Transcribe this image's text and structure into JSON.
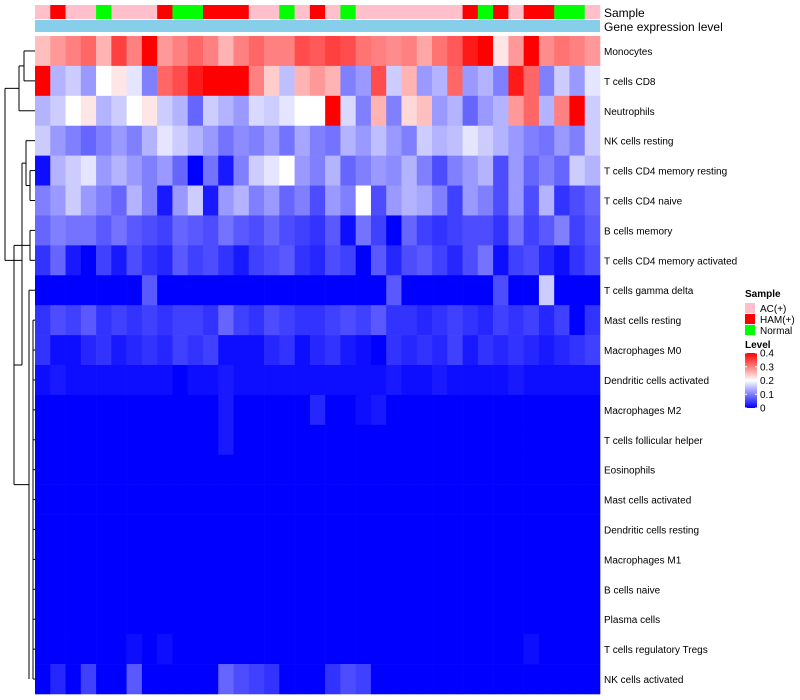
{
  "chart_data": {
    "type": "heatmap",
    "title": "",
    "annotation_labels": {
      "sample": "Sample",
      "gene": "Gene expression level"
    },
    "rows": [
      "Monocytes",
      "T cells CD8",
      "Neutrophils",
      "NK cells resting",
      "T cells CD4 memory resting",
      "T cells CD4 naive",
      "B cells memory",
      "T cells CD4 memory activated",
      "T cells gamma delta",
      "Mast cells resting",
      "Macrophages M0",
      "Dendritic cells activated",
      "Macrophages M2",
      "T cells follicular helper",
      "Eosinophils",
      "Mast cells activated",
      "Dendritic cells resting",
      "Macrophages M1",
      "B cells naive",
      "Plasma cells",
      "T cells regulatory  Tregs",
      "NK cells activated"
    ],
    "sample_groups": [
      "AC",
      "HAM",
      "AC",
      "AC",
      "Normal",
      "AC",
      "AC",
      "AC",
      "HAM",
      "Normal",
      "Normal",
      "HAM",
      "HAM",
      "HAM",
      "AC",
      "AC",
      "Normal",
      "AC",
      "HAM",
      "AC",
      "Normal",
      "AC",
      "AC",
      "AC",
      "AC",
      "AC",
      "AC",
      "AC",
      "HAM",
      "Normal",
      "HAM",
      "AC",
      "HAM",
      "HAM",
      "Normal",
      "Normal",
      "AC"
    ],
    "values": [
      [
        0.25,
        0.28,
        0.3,
        0.32,
        0.26,
        0.35,
        0.3,
        0.4,
        0.28,
        0.3,
        0.32,
        0.3,
        0.26,
        0.3,
        0.32,
        0.3,
        0.3,
        0.34,
        0.33,
        0.35,
        0.34,
        0.31,
        0.3,
        0.29,
        0.3,
        0.27,
        0.31,
        0.33,
        0.38,
        0.4,
        0.22,
        0.28,
        0.4,
        0.29,
        0.31,
        0.3,
        0.28
      ],
      [
        0.4,
        0.14,
        0.16,
        0.12,
        0.2,
        0.22,
        0.18,
        0.1,
        0.32,
        0.34,
        0.38,
        0.4,
        0.4,
        0.4,
        0.3,
        0.24,
        0.15,
        0.26,
        0.28,
        0.26,
        0.1,
        0.12,
        0.34,
        0.16,
        0.26,
        0.12,
        0.14,
        0.32,
        0.12,
        0.14,
        0.1,
        0.38,
        0.32,
        0.1,
        0.16,
        0.12,
        0.18
      ],
      [
        0.14,
        0.16,
        0.2,
        0.22,
        0.14,
        0.16,
        0.2,
        0.22,
        0.16,
        0.14,
        0.08,
        0.16,
        0.14,
        0.12,
        0.17,
        0.16,
        0.18,
        0.2,
        0.2,
        0.4,
        0.17,
        0.1,
        0.26,
        0.1,
        0.23,
        0.25,
        0.12,
        0.14,
        0.08,
        0.12,
        0.14,
        0.28,
        0.32,
        0.14,
        0.3,
        0.4,
        0.16
      ],
      [
        0.16,
        0.12,
        0.1,
        0.08,
        0.1,
        0.12,
        0.1,
        0.14,
        0.18,
        0.16,
        0.14,
        0.12,
        0.09,
        0.11,
        0.1,
        0.12,
        0.09,
        0.13,
        0.1,
        0.09,
        0.14,
        0.12,
        0.15,
        0.12,
        0.1,
        0.16,
        0.14,
        0.15,
        0.18,
        0.16,
        0.14,
        0.12,
        0.1,
        0.09,
        0.12,
        0.1,
        0.16
      ],
      [
        0.01,
        0.14,
        0.16,
        0.18,
        0.12,
        0.14,
        0.12,
        0.1,
        0.12,
        0.08,
        0.0,
        0.09,
        0.02,
        0.1,
        0.16,
        0.18,
        0.2,
        0.12,
        0.1,
        0.14,
        0.08,
        0.1,
        0.12,
        0.11,
        0.14,
        0.1,
        0.06,
        0.1,
        0.12,
        0.14,
        0.06,
        0.12,
        0.08,
        0.1,
        0.08,
        0.16,
        0.14
      ],
      [
        0.1,
        0.12,
        0.16,
        0.12,
        0.1,
        0.08,
        0.14,
        0.1,
        0.02,
        0.12,
        0.16,
        0.02,
        0.12,
        0.14,
        0.1,
        0.12,
        0.08,
        0.1,
        0.06,
        0.12,
        0.1,
        0.2,
        0.06,
        0.12,
        0.14,
        0.13,
        0.1,
        0.05,
        0.12,
        0.1,
        0.06,
        0.12,
        0.06,
        0.14,
        0.04,
        0.06,
        0.08
      ],
      [
        0.08,
        0.1,
        0.09,
        0.09,
        0.07,
        0.09,
        0.07,
        0.06,
        0.05,
        0.08,
        0.07,
        0.06,
        0.09,
        0.07,
        0.06,
        0.08,
        0.06,
        0.05,
        0.04,
        0.07,
        0.01,
        0.09,
        0.05,
        0.0,
        0.08,
        0.05,
        0.04,
        0.05,
        0.06,
        0.06,
        0.04,
        0.09,
        0.05,
        0.07,
        0.1,
        0.05,
        0.07
      ],
      [
        0.04,
        0.08,
        0.02,
        0.0,
        0.05,
        0.02,
        0.06,
        0.04,
        0.03,
        0.07,
        0.05,
        0.06,
        0.04,
        0.02,
        0.05,
        0.06,
        0.07,
        0.04,
        0.03,
        0.06,
        0.05,
        0.0,
        0.07,
        0.03,
        0.06,
        0.07,
        0.05,
        0.03,
        0.06,
        0.09,
        0.01,
        0.05,
        0.06,
        0.03,
        0.01,
        0.04,
        0.06
      ],
      [
        0.0,
        0.0,
        0.0,
        0.0,
        0.0,
        0.0,
        0.0,
        0.07,
        0.0,
        0.0,
        0.0,
        0.0,
        0.0,
        0.0,
        0.0,
        0.0,
        0.0,
        0.0,
        0.0,
        0.0,
        0.0,
        0.0,
        0.0,
        0.07,
        0.0,
        0.0,
        0.0,
        0.0,
        0.0,
        0.0,
        0.06,
        0.0,
        0.0,
        0.16,
        0.0,
        0.0,
        0.0
      ],
      [
        0.04,
        0.06,
        0.05,
        0.07,
        0.04,
        0.05,
        0.04,
        0.05,
        0.04,
        0.05,
        0.05,
        0.04,
        0.08,
        0.05,
        0.04,
        0.06,
        0.05,
        0.04,
        0.04,
        0.05,
        0.06,
        0.05,
        0.07,
        0.04,
        0.04,
        0.03,
        0.04,
        0.05,
        0.04,
        0.03,
        0.05,
        0.04,
        0.05,
        0.03,
        0.05,
        0.0,
        0.04
      ],
      [
        0.04,
        0.01,
        0.01,
        0.03,
        0.04,
        0.02,
        0.03,
        0.04,
        0.03,
        0.05,
        0.04,
        0.05,
        0.01,
        0.01,
        0.01,
        0.03,
        0.04,
        0.01,
        0.03,
        0.04,
        0.02,
        0.01,
        0.0,
        0.04,
        0.03,
        0.04,
        0.03,
        0.05,
        0.02,
        0.04,
        0.03,
        0.04,
        0.03,
        0.02,
        0.03,
        0.04,
        0.05
      ],
      [
        0.01,
        0.02,
        0.01,
        0.01,
        0.01,
        0.01,
        0.01,
        0.01,
        0.01,
        0.0,
        0.01,
        0.01,
        0.02,
        0.01,
        0.01,
        0.01,
        0.01,
        0.01,
        0.01,
        0.01,
        0.01,
        0.01,
        0.01,
        0.02,
        0.01,
        0.01,
        0.02,
        0.01,
        0.01,
        0.01,
        0.01,
        0.02,
        0.01,
        0.01,
        0.01,
        0.01,
        0.01
      ],
      [
        0.0,
        0.0,
        0.0,
        0.0,
        0.0,
        0.0,
        0.0,
        0.0,
        0.0,
        0.0,
        0.0,
        0.0,
        0.02,
        0.0,
        0.0,
        0.0,
        0.0,
        0.0,
        0.03,
        0.0,
        0.0,
        0.01,
        0.02,
        0.0,
        0.0,
        0.0,
        0.0,
        0.0,
        0.0,
        0.0,
        0.0,
        0.0,
        0.0,
        0.0,
        0.0,
        0.0,
        0.0
      ],
      [
        0.0,
        0.0,
        0.0,
        0.0,
        0.0,
        0.0,
        0.0,
        0.0,
        0.0,
        0.0,
        0.0,
        0.0,
        0.02,
        0.0,
        0.0,
        0.0,
        0.0,
        0.0,
        0.0,
        0.0,
        0.0,
        0.0,
        0.0,
        0.0,
        0.0,
        0.0,
        0.0,
        0.0,
        0.0,
        0.0,
        0.0,
        0.0,
        0.0,
        0.0,
        0.0,
        0.0,
        0.0
      ],
      [
        0.0,
        0.0,
        0.0,
        0.0,
        0.0,
        0.0,
        0.0,
        0.0,
        0.0,
        0.0,
        0.0,
        0.0,
        0.0,
        0.0,
        0.0,
        0.0,
        0.0,
        0.0,
        0.0,
        0.0,
        0.0,
        0.0,
        0.0,
        0.0,
        0.0,
        0.0,
        0.0,
        0.0,
        0.0,
        0.0,
        0.0,
        0.0,
        0.0,
        0.0,
        0.0,
        0.0,
        0.0
      ],
      [
        0.0,
        0.0,
        0.0,
        0.0,
        0.0,
        0.0,
        0.0,
        0.0,
        0.0,
        0.0,
        0.0,
        0.0,
        0.0,
        0.0,
        0.0,
        0.0,
        0.0,
        0.0,
        0.0,
        0.0,
        0.0,
        0.0,
        0.0,
        0.0,
        0.0,
        0.0,
        0.0,
        0.0,
        0.0,
        0.0,
        0.0,
        0.0,
        0.0,
        0.0,
        0.0,
        0.0,
        0.0
      ],
      [
        0.0,
        0.0,
        0.0,
        0.0,
        0.0,
        0.0,
        0.0,
        0.0,
        0.0,
        0.0,
        0.0,
        0.0,
        0.0,
        0.0,
        0.0,
        0.0,
        0.0,
        0.0,
        0.0,
        0.0,
        0.0,
        0.0,
        0.0,
        0.0,
        0.0,
        0.0,
        0.0,
        0.0,
        0.0,
        0.0,
        0.0,
        0.0,
        0.0,
        0.0,
        0.0,
        0.0,
        0.0
      ],
      [
        0.0,
        0.0,
        0.0,
        0.0,
        0.0,
        0.0,
        0.0,
        0.0,
        0.0,
        0.0,
        0.0,
        0.0,
        0.0,
        0.0,
        0.0,
        0.0,
        0.0,
        0.0,
        0.0,
        0.0,
        0.0,
        0.0,
        0.0,
        0.0,
        0.0,
        0.0,
        0.0,
        0.0,
        0.0,
        0.0,
        0.0,
        0.0,
        0.0,
        0.0,
        0.0,
        0.0,
        0.0
      ],
      [
        0.0,
        0.0,
        0.0,
        0.0,
        0.0,
        0.0,
        0.0,
        0.0,
        0.0,
        0.0,
        0.0,
        0.0,
        0.0,
        0.0,
        0.0,
        0.0,
        0.0,
        0.0,
        0.0,
        0.0,
        0.0,
        0.0,
        0.0,
        0.0,
        0.0,
        0.0,
        0.0,
        0.0,
        0.0,
        0.0,
        0.0,
        0.0,
        0.0,
        0.0,
        0.0,
        0.0,
        0.0
      ],
      [
        0.0,
        0.0,
        0.0,
        0.0,
        0.0,
        0.0,
        0.0,
        0.0,
        0.0,
        0.0,
        0.0,
        0.0,
        0.0,
        0.0,
        0.0,
        0.0,
        0.0,
        0.0,
        0.0,
        0.0,
        0.0,
        0.0,
        0.0,
        0.0,
        0.0,
        0.0,
        0.0,
        0.0,
        0.0,
        0.0,
        0.0,
        0.0,
        0.0,
        0.0,
        0.0,
        0.0,
        0.0
      ],
      [
        0.0,
        0.0,
        0.0,
        0.0,
        0.0,
        0.0,
        0.01,
        0.0,
        0.01,
        0.0,
        0.0,
        0.0,
        0.0,
        0.0,
        0.0,
        0.0,
        0.0,
        0.0,
        0.0,
        0.0,
        0.0,
        0.0,
        0.0,
        0.0,
        0.0,
        0.0,
        0.0,
        0.0,
        0.0,
        0.0,
        0.0,
        0.0,
        0.01,
        0.0,
        0.0,
        0.0,
        0.0
      ],
      [
        0.0,
        0.03,
        0.0,
        0.05,
        0.0,
        0.0,
        0.07,
        0.0,
        0.0,
        0.0,
        0.0,
        0.0,
        0.08,
        0.06,
        0.05,
        0.04,
        0.0,
        0.0,
        0.0,
        0.04,
        0.06,
        0.05,
        0.0,
        0.0,
        0.0,
        0.0,
        0.0,
        0.0,
        0.0,
        0.0,
        0.0,
        0.0,
        0.0,
        0.0,
        0.0,
        0.0,
        0.0
      ]
    ],
    "color_scale": {
      "min": 0,
      "max": 0.4,
      "low": "#0000ff",
      "mid": "#ffffff",
      "high": "#ff0000"
    },
    "legend": {
      "position": "right",
      "sample_title": "Sample",
      "sample_entries": [
        {
          "label": "AC(+)",
          "color": "#ffc0cb"
        },
        {
          "label": "HAM(+)",
          "color": "#ff0000"
        },
        {
          "label": "Normal",
          "color": "#00ff00"
        }
      ],
      "level_title": "Level",
      "level_ticks": [
        "0.4",
        "0.3",
        "0.2",
        "0.1",
        "0"
      ],
      "level_tick_values": [
        0.4,
        0.3,
        0.2,
        0.1,
        0
      ]
    },
    "group_colors": {
      "AC": "#ffc0cb",
      "HAM": "#ff0000",
      "Normal": "#00ff00"
    },
    "gene_bar_color": "#87ceeb",
    "dendrogram_color": "#000000"
  }
}
